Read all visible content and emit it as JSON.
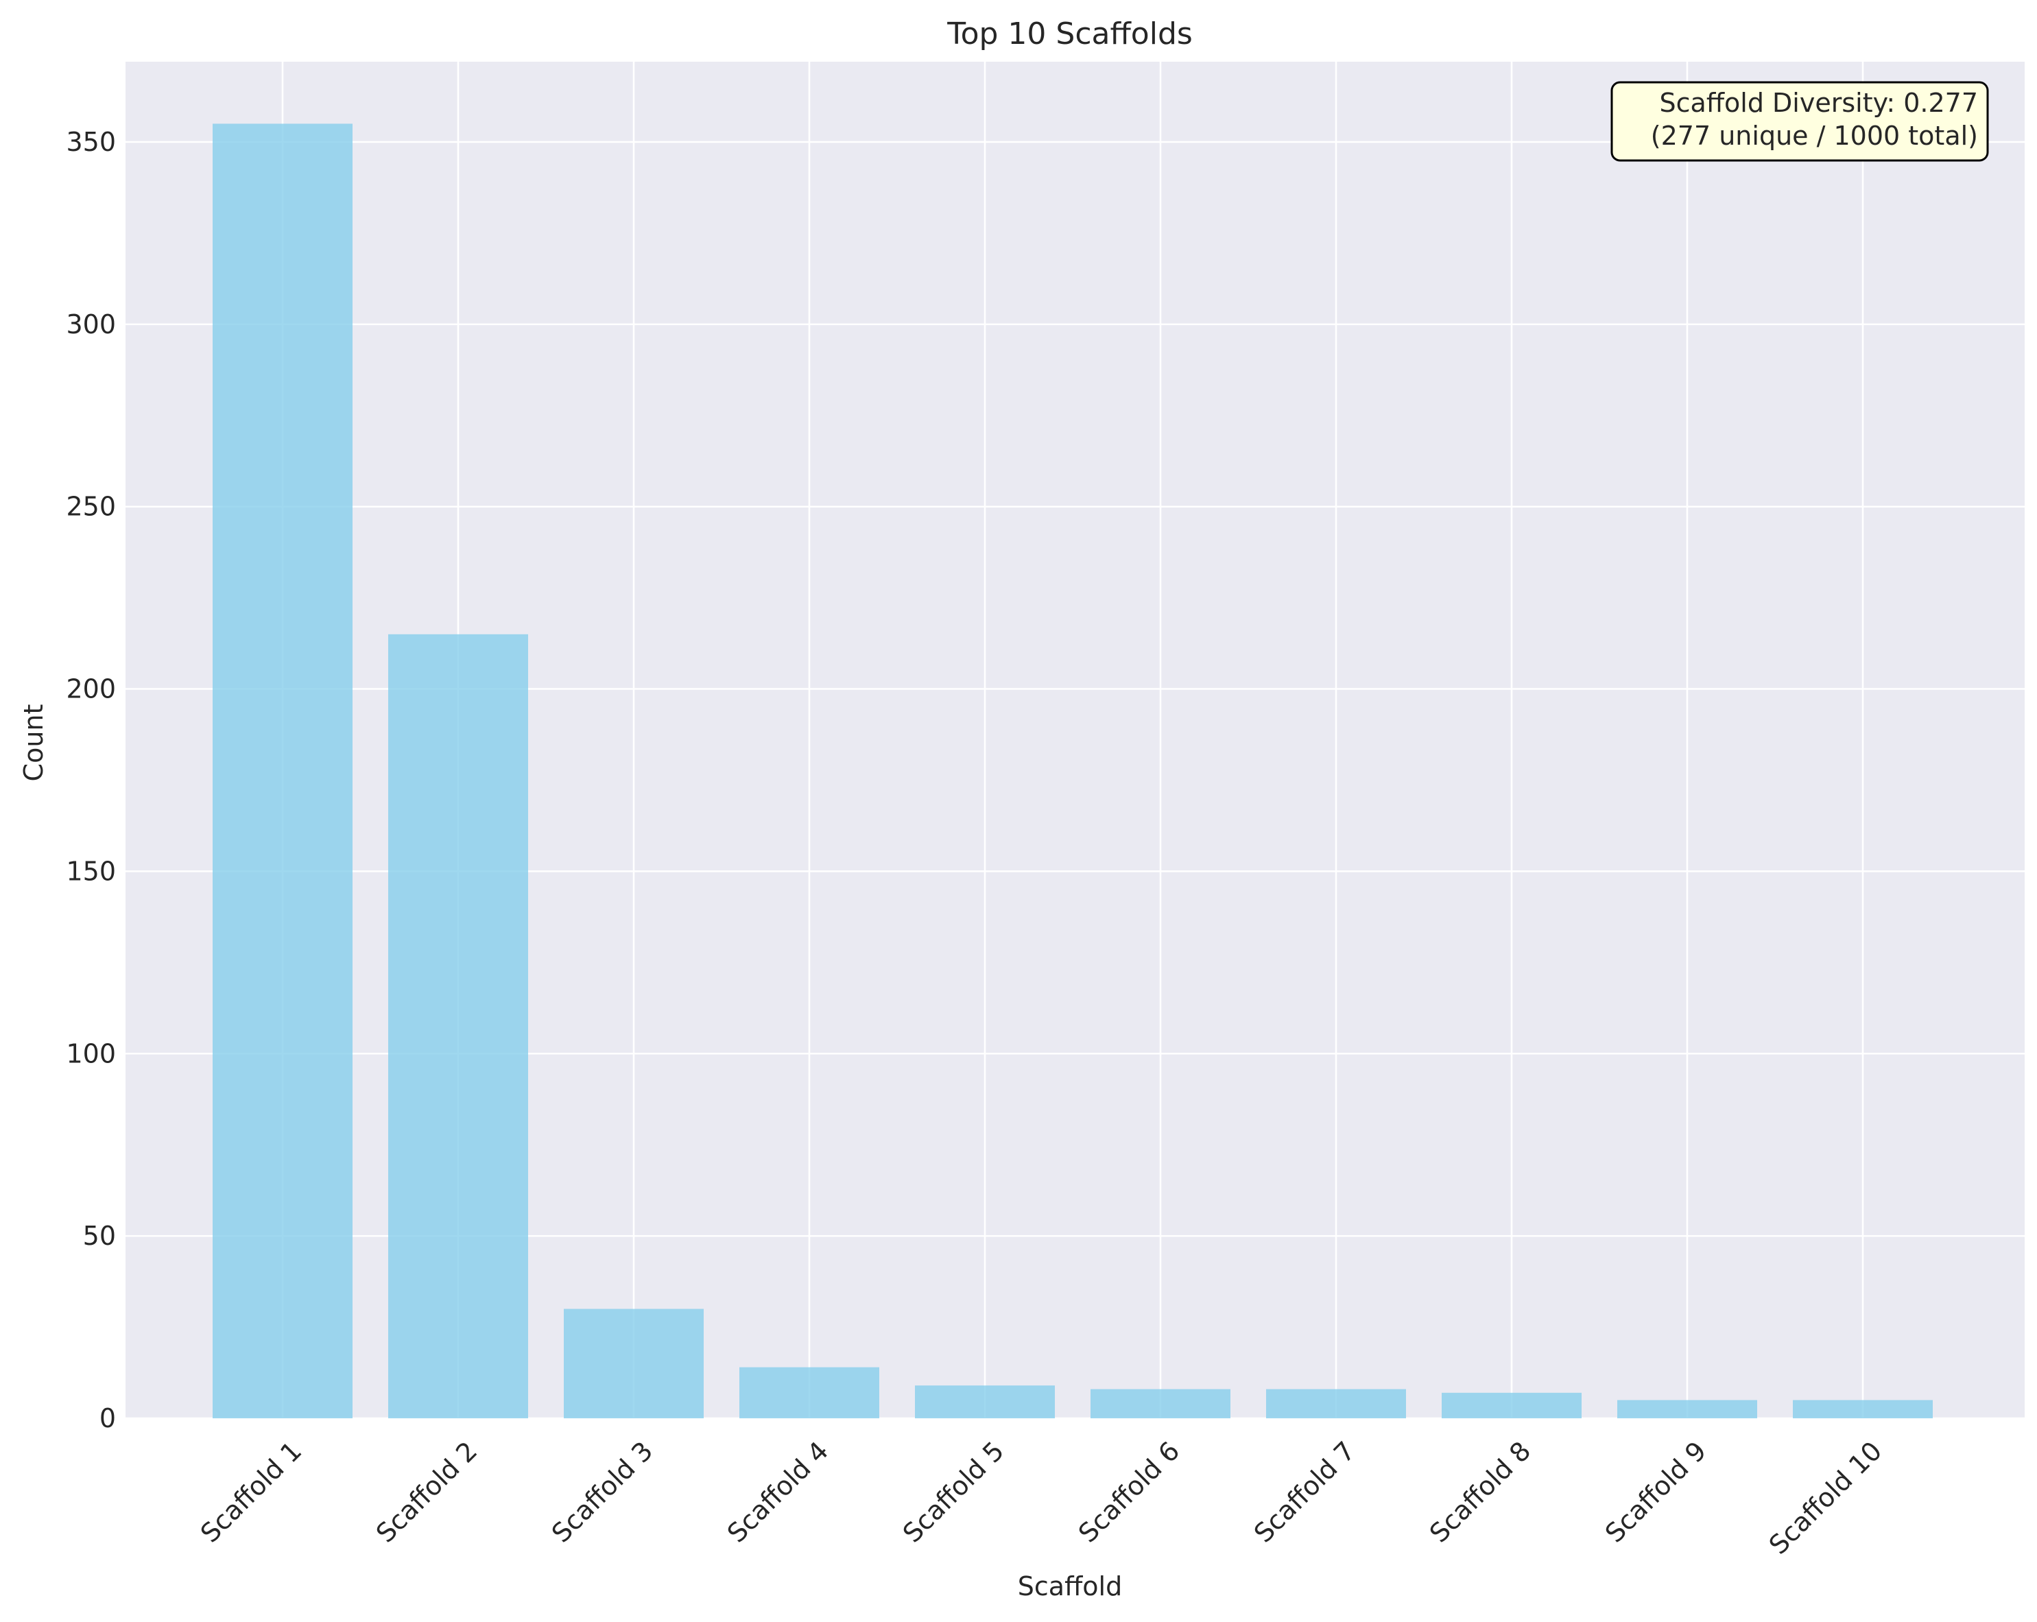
{
  "chart_data": {
    "type": "bar",
    "title": "Top 10 Scaffolds",
    "xlabel": "Scaffold",
    "ylabel": "Count",
    "categories": [
      "Scaffold 1",
      "Scaffold 2",
      "Scaffold 3",
      "Scaffold 4",
      "Scaffold 5",
      "Scaffold 6",
      "Scaffold 7",
      "Scaffold 8",
      "Scaffold 9",
      "Scaffold 10"
    ],
    "values": [
      355,
      215,
      30,
      14,
      9,
      8,
      8,
      7,
      5,
      5
    ],
    "ylim": [
      0,
      372
    ],
    "yticks": [
      0,
      50,
      100,
      150,
      200,
      250,
      300,
      350
    ],
    "grid": true,
    "annotation": {
      "line1": "Scaffold Diversity: 0.277",
      "line2": "(277 unique / 1000 total)",
      "placement": "top-right"
    },
    "colors": {
      "bar": "#87CEEB",
      "background": "#EAEAF2",
      "grid": "#FFFFFF",
      "annotation_fill": "#FFFFE0",
      "annotation_border": "#000000"
    }
  }
}
